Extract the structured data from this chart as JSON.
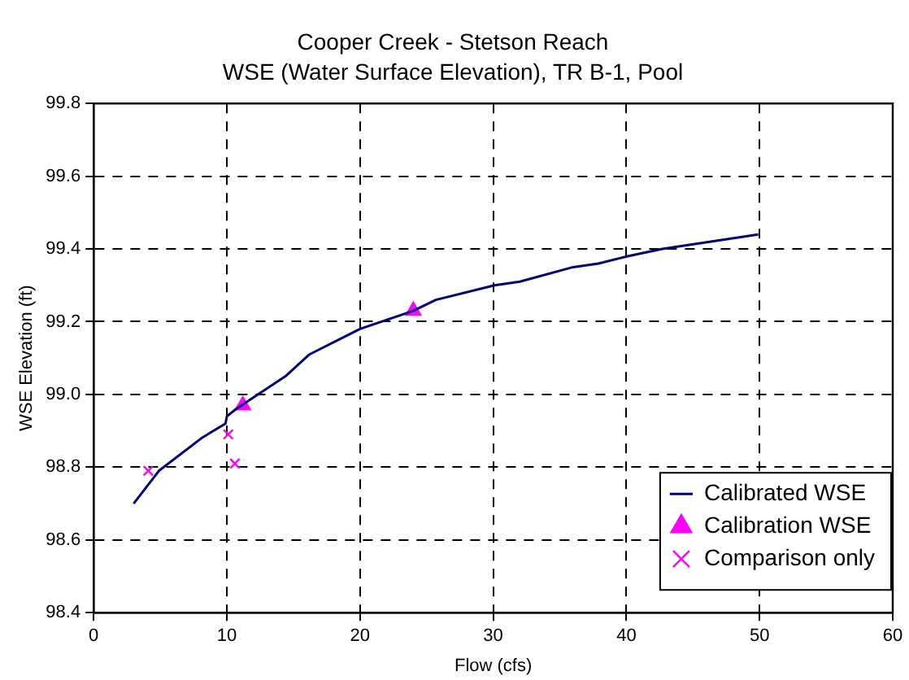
{
  "chart_data": {
    "type": "line",
    "title": "Cooper Creek - Stetson Reach",
    "subtitle": "WSE (Water Surface Elevation), TR B-1, Pool",
    "xlabel": "Flow (cfs)",
    "ylabel": "WSE Elevation (ft)",
    "series": [
      {
        "name": "Calibrated WSE",
        "type": "line",
        "marker": "none",
        "color": "#000080",
        "x": [
          3.0,
          4.9,
          8.1,
          9.9,
          10.0,
          10.7,
          14.4,
          16.2,
          20.0,
          24.0,
          25.7,
          30.1,
          32.0,
          36.0,
          37.9,
          40.1,
          42.7,
          49.9
        ],
        "values": [
          98.7,
          98.79,
          98.88,
          98.92,
          98.94,
          98.96,
          99.05,
          99.11,
          99.18,
          99.23,
          99.26,
          99.3,
          99.31,
          99.35,
          99.36,
          99.38,
          99.4,
          99.44
        ]
      },
      {
        "name": "Calibration WSE",
        "type": "scatter",
        "marker": "triangle",
        "color": "#ff00ff",
        "x": [
          11.2,
          24.0
        ],
        "values": [
          98.97,
          99.23
        ]
      },
      {
        "name": "Comparison only",
        "type": "scatter",
        "marker": "cross",
        "color": "#ff00ff",
        "x": [
          4.1,
          10.1,
          10.6
        ],
        "values": [
          98.79,
          98.89,
          98.81
        ]
      }
    ],
    "xlim": [
      0,
      60
    ],
    "xticks": [
      0,
      10,
      20,
      30,
      40,
      50,
      60
    ],
    "ylim": [
      98.4,
      99.8
    ],
    "yticks": [
      98.4,
      98.6,
      98.8,
      {
        "value": 99,
        "label": "99.0"
      },
      99.2,
      99.4,
      99.6,
      99.8
    ],
    "grid": true,
    "legend": "bottom right"
  }
}
